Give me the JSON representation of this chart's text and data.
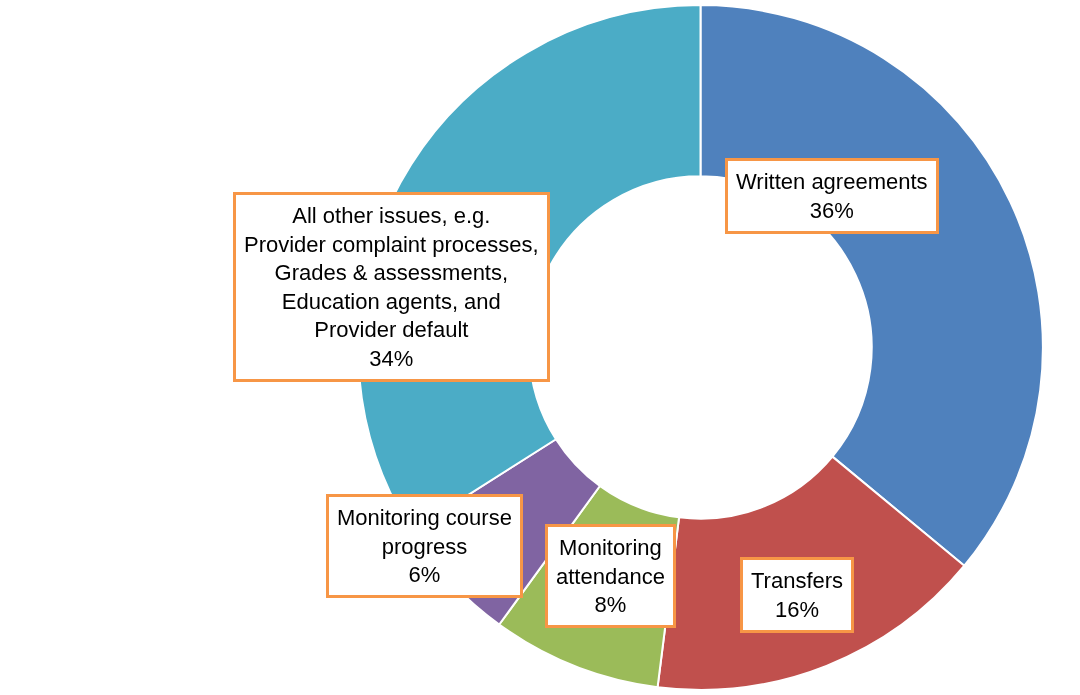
{
  "chart_data": {
    "type": "donut",
    "categories": [
      "Written agreements",
      "Transfers",
      "Monitoring attendance",
      "Monitoring course progress",
      "All other issues, e.g. Provider complaint processes, Grades & assessments, Education agents, and Provider default"
    ],
    "values": [
      36,
      16,
      8,
      6,
      34
    ],
    "value_labels": [
      "36%",
      "16%",
      "8%",
      "6%",
      "34%"
    ],
    "colors": [
      "#4f81bd",
      "#c0504d",
      "#9bbb59",
      "#8064a2",
      "#4bacc6"
    ]
  }
}
